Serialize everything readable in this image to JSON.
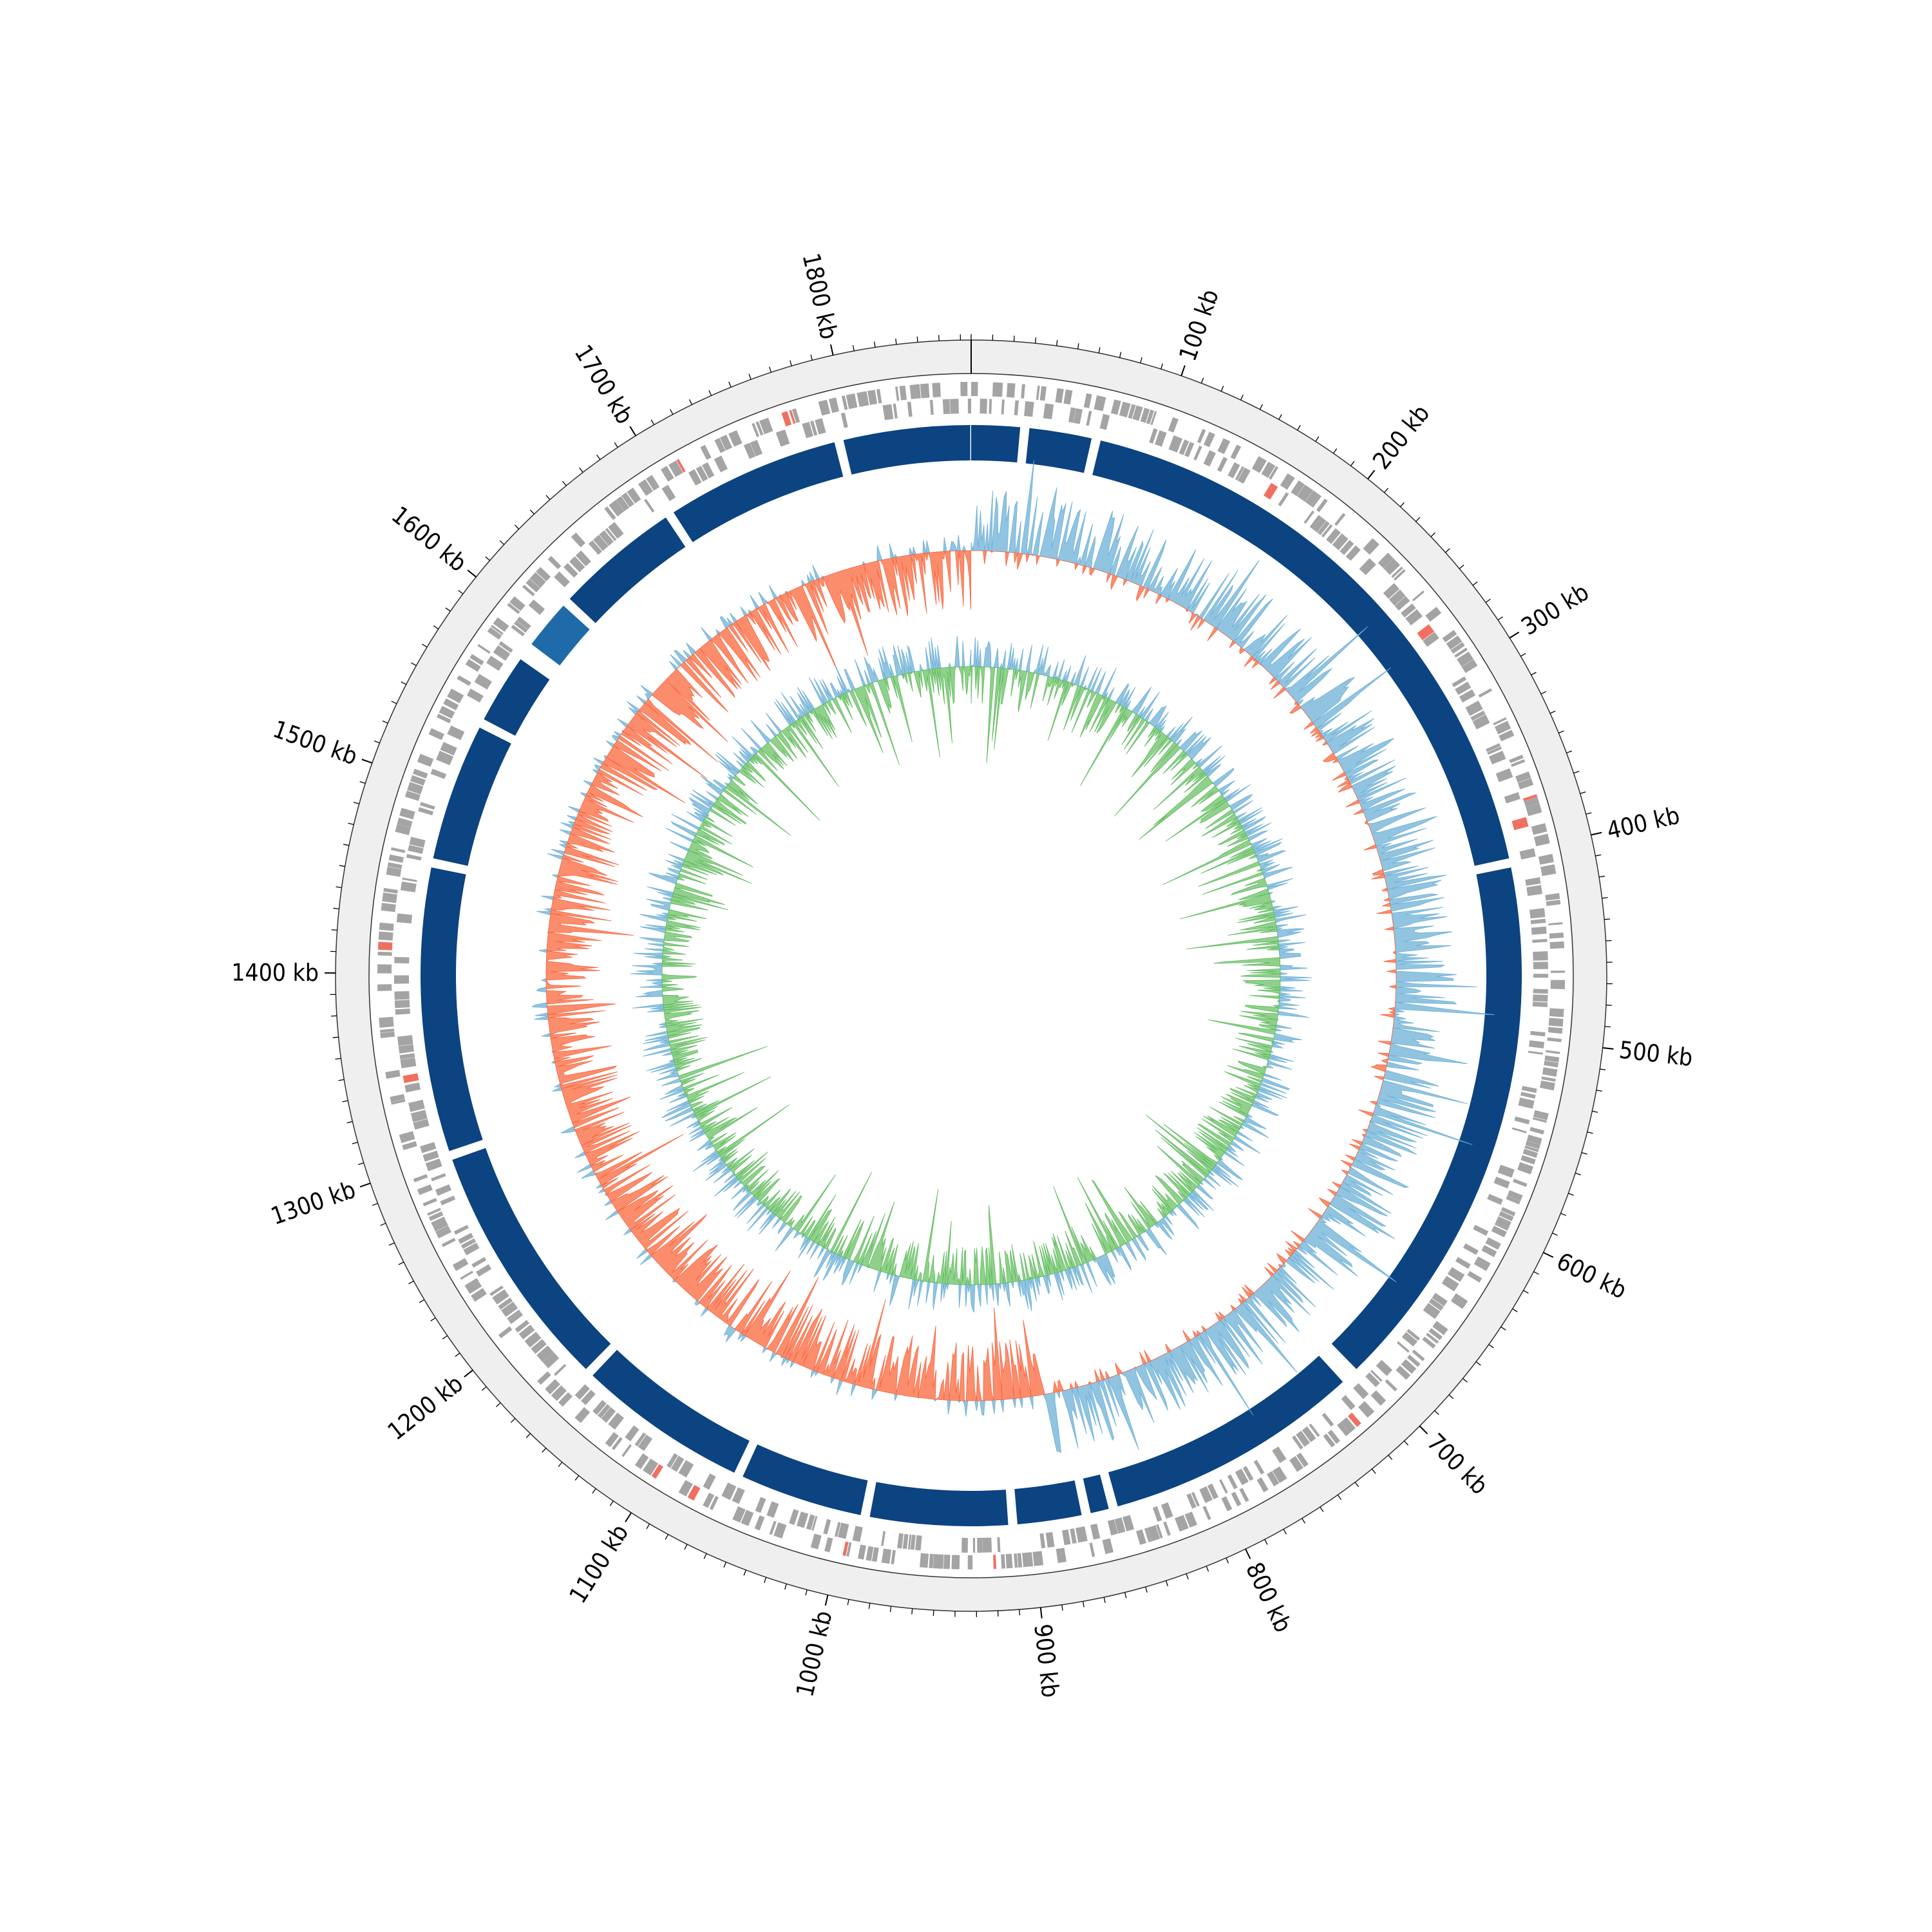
{
  "genome": {
    "total_kb": 1865,
    "major_tick_labels": [
      "100 kb",
      "200 kb",
      "300 kb",
      "400 kb",
      "500 kb",
      "600 kb",
      "700 kb",
      "800 kb",
      "900 kb",
      "1000 kb",
      "1100 kb",
      "1200 kb",
      "1300 kb",
      "1400 kb",
      "1500 kb",
      "1600 kb",
      "1700 kb",
      "1800 kb"
    ],
    "major_tick_kb": [
      100,
      200,
      300,
      400,
      500,
      600,
      700,
      800,
      900,
      1000,
      1100,
      1200,
      1300,
      1400,
      1500,
      1600,
      1700,
      1800
    ],
    "minor_tick_interval_kb": 10
  },
  "tracks": {
    "outer_ring_color": "#efefef",
    "gene_color": "#a4a4a4",
    "gene_accent_color": "#f07060",
    "contig_color": "#0c4381",
    "contig_alt_color": "#1f6aa8",
    "contig_gaps_kb": [
      29,
      68,
      405,
      705,
      710,
      855,
      870,
      910,
      990,
      1062,
      1160,
      1300,
      1460,
      1540,
      1583,
      1588,
      1620,
      1693,
      1793
    ],
    "gc_content": {
      "above_color": "#91c4e0",
      "below_color": "#fc8d6c"
    },
    "gc_skew": {
      "positive_color": "#91c4e0",
      "negative_color": "#8fd18a"
    }
  }
}
